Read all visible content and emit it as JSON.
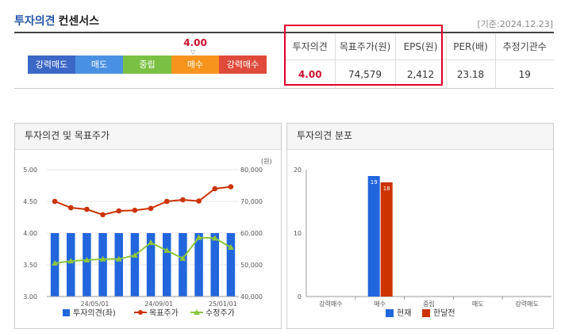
{
  "header": {
    "title_accent": "투자의견",
    "title_rest": "컨센서스",
    "date_note": "[기준:2024.12.23]"
  },
  "rating_scale": {
    "current_value": "4.00",
    "pointer": "▽",
    "segments": [
      {
        "label": "강력매도",
        "color": "#3b67c6"
      },
      {
        "label": "매도",
        "color": "#4a90e2"
      },
      {
        "label": "중립",
        "color": "#7ac143"
      },
      {
        "label": "매수",
        "color": "#f7941d"
      },
      {
        "label": "강력매수",
        "color": "#e04a3a"
      }
    ]
  },
  "consensus_table": {
    "headers": [
      "투자의견",
      "목표주가(원)",
      "EPS(원)",
      "PER(배)",
      "추정기관수"
    ],
    "values": [
      "4.00",
      "74,579",
      "2,412",
      "23.18",
      "19"
    ]
  },
  "left_panel": {
    "title": "투자의견 및 목표주가",
    "legend": [
      "투자의견(좌)",
      "목표주가",
      "수정주가"
    ]
  },
  "right_panel": {
    "title": "투자의견 분포",
    "legend": [
      "현재",
      "한달전"
    ]
  },
  "chart_data": [
    {
      "type": "bar+line",
      "title": "투자의견 및 목표주가",
      "y_left": {
        "ticks": [
          "5.00",
          "4.50",
          "4.00",
          "3.50",
          "3.00"
        ],
        "range": [
          3.0,
          5.0
        ]
      },
      "y_right": {
        "unit": "(원)",
        "ticks": [
          "80,000",
          "70,000",
          "60,000",
          "50,000",
          "40,000"
        ],
        "range": [
          40000,
          80000
        ]
      },
      "x_ticks": [
        "24/05/01",
        "24/09/01",
        "25/01/01"
      ],
      "series": [
        {
          "name": "투자의견(좌)",
          "kind": "bar",
          "axis": "left",
          "color": "#2266dd",
          "values": [
            4,
            4,
            4,
            4,
            4,
            4,
            4,
            4,
            4,
            4,
            4,
            4
          ]
        },
        {
          "name": "목표주가",
          "kind": "line",
          "axis": "right",
          "color": "#cc3300",
          "values": [
            70000,
            68000,
            67500,
            65800,
            67000,
            67200,
            67800,
            70000,
            70500,
            70100,
            74000,
            74600
          ]
        },
        {
          "name": "수정주가",
          "kind": "line",
          "axis": "right",
          "color": "#8dc63f",
          "values": [
            50500,
            51200,
            51500,
            51800,
            51800,
            53000,
            57000,
            54500,
            52000,
            58600,
            58400,
            55500
          ]
        }
      ]
    },
    {
      "type": "bar",
      "title": "투자의견 분포",
      "categories": [
        "강력매수",
        "매수",
        "중립",
        "매도",
        "강력매도"
      ],
      "y_ticks": [
        "20",
        "10",
        "0"
      ],
      "ylim": [
        0,
        20
      ],
      "series": [
        {
          "name": "현재",
          "color": "#2266dd",
          "values": [
            0,
            19,
            0,
            0,
            0
          ]
        },
        {
          "name": "한달전",
          "color": "#cc3300",
          "values": [
            0,
            18,
            0,
            0,
            0
          ]
        }
      ]
    }
  ]
}
